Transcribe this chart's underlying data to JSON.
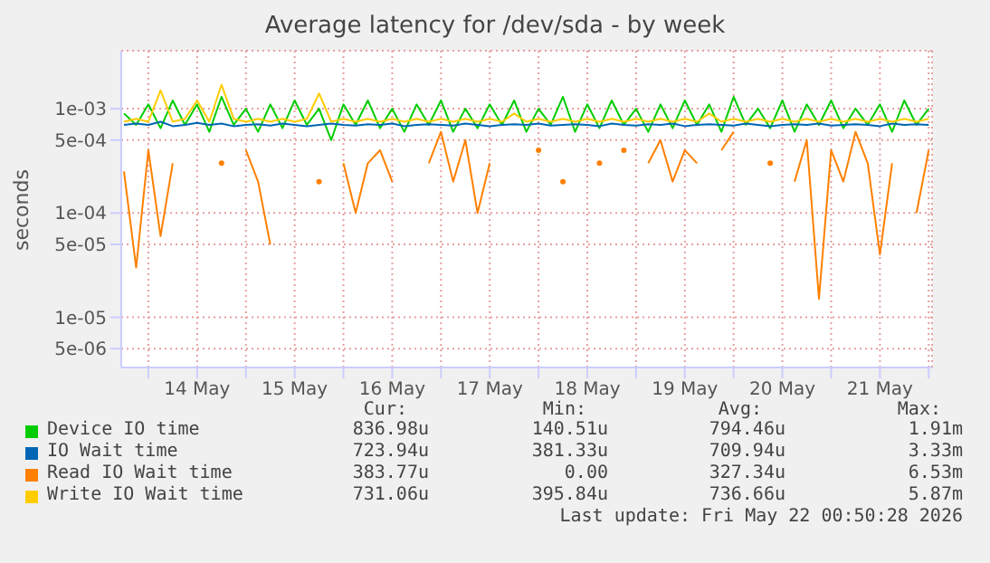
{
  "chart_data": {
    "type": "line",
    "title": "Average latency for /dev/sda - by week",
    "ylabel": "seconds",
    "log": true,
    "grid": true,
    "legend": "bottom",
    "x": [
      "2026-05-13T18:00",
      "2026-05-13T21:00",
      "2026-05-14T00:00",
      "2026-05-14T03:00",
      "2026-05-14T06:00",
      "2026-05-14T09:00",
      "2026-05-14T12:00",
      "2026-05-14T15:00",
      "2026-05-14T18:00",
      "2026-05-14T21:00",
      "2026-05-15T00:00",
      "2026-05-15T03:00",
      "2026-05-15T06:00",
      "2026-05-15T09:00",
      "2026-05-15T12:00",
      "2026-05-15T15:00",
      "2026-05-15T18:00",
      "2026-05-15T21:00",
      "2026-05-16T00:00",
      "2026-05-16T03:00",
      "2026-05-16T06:00",
      "2026-05-16T09:00",
      "2026-05-16T12:00",
      "2026-05-16T15:00",
      "2026-05-16T18:00",
      "2026-05-16T21:00",
      "2026-05-17T00:00",
      "2026-05-17T03:00",
      "2026-05-17T06:00",
      "2026-05-17T09:00",
      "2026-05-17T12:00",
      "2026-05-17T15:00",
      "2026-05-17T18:00",
      "2026-05-17T21:00",
      "2026-05-18T00:00",
      "2026-05-18T03:00",
      "2026-05-18T06:00",
      "2026-05-18T09:00",
      "2026-05-18T12:00",
      "2026-05-18T15:00",
      "2026-05-18T18:00",
      "2026-05-18T21:00",
      "2026-05-19T00:00",
      "2026-05-19T03:00",
      "2026-05-19T06:00",
      "2026-05-19T09:00",
      "2026-05-19T12:00",
      "2026-05-19T15:00",
      "2026-05-19T18:00",
      "2026-05-19T21:00",
      "2026-05-20T00:00",
      "2026-05-20T03:00",
      "2026-05-20T06:00",
      "2026-05-20T09:00",
      "2026-05-20T12:00",
      "2026-05-20T15:00",
      "2026-05-20T18:00",
      "2026-05-20T21:00",
      "2026-05-21T00:00",
      "2026-05-21T03:00",
      "2026-05-21T06:00",
      "2026-05-21T09:00",
      "2026-05-21T12:00",
      "2026-05-21T15:00",
      "2026-05-21T18:00",
      "2026-05-21T21:00",
      "2026-05-22T00:00"
    ],
    "xlim": [
      "2026-05-13T17:20",
      "2026-05-22T00:50"
    ],
    "xticks": [
      {
        "value": "2026-05-14T00:00",
        "label": null
      },
      {
        "value": "2026-05-14T12:00",
        "label": "14 May"
      },
      {
        "value": "2026-05-15T00:00",
        "label": null
      },
      {
        "value": "2026-05-15T12:00",
        "label": "15 May"
      },
      {
        "value": "2026-05-16T00:00",
        "label": null
      },
      {
        "value": "2026-05-16T12:00",
        "label": "16 May"
      },
      {
        "value": "2026-05-17T00:00",
        "label": null
      },
      {
        "value": "2026-05-17T12:00",
        "label": "17 May"
      },
      {
        "value": "2026-05-18T00:00",
        "label": null
      },
      {
        "value": "2026-05-18T12:00",
        "label": "18 May"
      },
      {
        "value": "2026-05-19T00:00",
        "label": null
      },
      {
        "value": "2026-05-19T12:00",
        "label": "19 May"
      },
      {
        "value": "2026-05-20T00:00",
        "label": null
      },
      {
        "value": "2026-05-20T12:00",
        "label": "20 May"
      },
      {
        "value": "2026-05-21T00:00",
        "label": null
      },
      {
        "value": "2026-05-21T12:00",
        "label": "21 May"
      },
      {
        "value": "2026-05-22T00:00",
        "label": null
      }
    ],
    "ylim": [
      3.3e-06,
      0.0036
    ],
    "yticks": [
      {
        "value": 5e-06,
        "label": "5e-06"
      },
      {
        "value": 1e-05,
        "label": "1e-05"
      },
      {
        "value": 5e-05,
        "label": "5e-05"
      },
      {
        "value": 0.0001,
        "label": "1e-04"
      },
      {
        "value": 0.0005,
        "label": "5e-04"
      },
      {
        "value": 0.001,
        "label": "1e-03"
      }
    ],
    "series": [
      {
        "name": "Device IO time",
        "color": "#00cc00",
        "values": [
          0.0009,
          0.0007,
          0.0011,
          0.00065,
          0.0012,
          0.0007,
          0.0011,
          0.0006,
          0.0013,
          0.0007,
          0.001,
          0.0006,
          0.0011,
          0.00065,
          0.0012,
          0.0007,
          0.001,
          0.0005,
          0.0011,
          0.0007,
          0.0012,
          0.00065,
          0.001,
          0.0006,
          0.0011,
          0.0007,
          0.0012,
          0.0006,
          0.001,
          0.00065,
          0.0011,
          0.0007,
          0.0012,
          0.0006,
          0.001,
          0.0007,
          0.0013,
          0.0006,
          0.0011,
          0.00065,
          0.0012,
          0.0007,
          0.001,
          0.0006,
          0.0011,
          0.00065,
          0.0012,
          0.0007,
          0.0011,
          0.0006,
          0.0013,
          0.0007,
          0.001,
          0.00065,
          0.0012,
          0.0006,
          0.0011,
          0.0007,
          0.0012,
          0.00065,
          0.001,
          0.0007,
          0.0011,
          0.0006,
          0.0012,
          0.0007,
          0.001
        ]
      },
      {
        "name": "IO Wait time",
        "color": "#0066b3",
        "values": [
          0.0007,
          0.00072,
          0.0007,
          0.00075,
          0.00068,
          0.0007,
          0.00073,
          0.0007,
          0.00072,
          0.00068,
          0.0007,
          0.00071,
          0.00069,
          0.00072,
          0.0007,
          0.00068,
          0.0007,
          0.00072,
          0.0007,
          0.00069,
          0.00071,
          0.0007,
          0.00072,
          0.00068,
          0.0007,
          0.00071,
          0.0007,
          0.00069,
          0.00072,
          0.0007,
          0.00068,
          0.0007,
          0.00071,
          0.0007,
          0.00072,
          0.00069,
          0.0007,
          0.00071,
          0.0007,
          0.00068,
          0.00072,
          0.0007,
          0.00069,
          0.00071,
          0.0007,
          0.00072,
          0.00068,
          0.0007,
          0.00071,
          0.0007,
          0.00069,
          0.00072,
          0.0007,
          0.00068,
          0.0007,
          0.00071,
          0.0007,
          0.00072,
          0.00069,
          0.0007,
          0.00071,
          0.0007,
          0.00068,
          0.00072,
          0.0007,
          0.00071,
          0.0007
        ]
      },
      {
        "name": "Read IO Wait time",
        "color": "#ff8000",
        "values": [
          0.00025,
          3e-05,
          0.0004,
          6e-05,
          0.0003,
          null,
          null,
          null,
          0.0003,
          null,
          0.0004,
          0.0002,
          5e-05,
          null,
          null,
          null,
          0.0002,
          null,
          0.0003,
          0.0001,
          0.0003,
          0.0004,
          0.0002,
          null,
          null,
          0.0003,
          0.0006,
          0.0002,
          0.0005,
          0.0001,
          0.0003,
          null,
          null,
          null,
          0.0004,
          null,
          0.0002,
          null,
          null,
          0.0003,
          null,
          0.0004,
          null,
          0.0003,
          0.0005,
          0.0002,
          0.0004,
          0.0003,
          null,
          0.0004,
          0.0006,
          null,
          null,
          0.0003,
          null,
          0.0002,
          0.0005,
          1.5e-05,
          0.0004,
          0.0002,
          0.0006,
          0.0003,
          4e-05,
          0.0003,
          null,
          0.0001,
          0.0004
        ]
      },
      {
        "name": "Write IO Wait time",
        "color": "#ffcc00",
        "values": [
          0.00075,
          0.0008,
          0.00075,
          0.0015,
          0.00075,
          0.0008,
          0.0012,
          0.00075,
          0.0017,
          0.0008,
          0.00075,
          0.0008,
          0.00075,
          0.0008,
          0.00075,
          0.0008,
          0.0014,
          0.00075,
          0.0008,
          0.00075,
          0.0008,
          0.00075,
          0.0008,
          0.00075,
          0.0008,
          0.00075,
          0.0008,
          0.00075,
          0.0008,
          0.00075,
          0.0008,
          0.00075,
          0.0009,
          0.00075,
          0.0008,
          0.00075,
          0.0008,
          0.00075,
          0.0008,
          0.00075,
          0.0008,
          0.00075,
          0.0008,
          0.00075,
          0.0008,
          0.00075,
          0.0008,
          0.00075,
          0.0009,
          0.00075,
          0.0008,
          0.00075,
          0.0008,
          0.00075,
          0.0008,
          0.00075,
          0.0008,
          0.00075,
          0.0008,
          0.00075,
          0.0008,
          0.00075,
          0.0008,
          0.00075,
          0.0008,
          0.00075,
          0.0008
        ]
      }
    ],
    "annotations": [
      "Cur:",
      "Min:",
      "Avg:",
      "Max:",
      "836.98u",
      "140.51u",
      "794.46u",
      "1.91m",
      "723.94u",
      "381.33u",
      "709.94u",
      "3.33m",
      "383.77u",
      "0.00",
      "327.34u",
      "6.53m",
      "731.06u",
      "395.84u",
      "736.66u",
      "5.87m",
      "Last update: Fri May 22 00:50:28 2026"
    ]
  }
}
